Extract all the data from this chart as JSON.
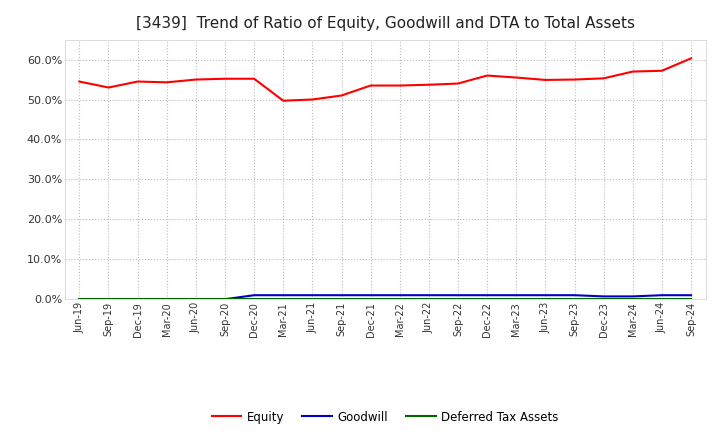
{
  "title": "[3439]  Trend of Ratio of Equity, Goodwill and DTA to Total Assets",
  "x_labels": [
    "Jun-19",
    "Sep-19",
    "Dec-19",
    "Mar-20",
    "Jun-20",
    "Sep-20",
    "Dec-20",
    "Mar-21",
    "Jun-21",
    "Sep-21",
    "Dec-21",
    "Mar-22",
    "Jun-22",
    "Sep-22",
    "Dec-22",
    "Mar-23",
    "Jun-23",
    "Sep-23",
    "Dec-23",
    "Mar-24",
    "Jun-24",
    "Sep-24"
  ],
  "equity": [
    0.545,
    0.53,
    0.545,
    0.543,
    0.55,
    0.552,
    0.552,
    0.497,
    0.5,
    0.51,
    0.535,
    0.535,
    0.537,
    0.54,
    0.56,
    0.555,
    0.549,
    0.55,
    0.553,
    0.57,
    0.572,
    0.603
  ],
  "goodwill": [
    0.0,
    0.0,
    0.0,
    0.0,
    0.0,
    0.0,
    0.01,
    0.01,
    0.01,
    0.01,
    0.01,
    0.01,
    0.01,
    0.01,
    0.01,
    0.01,
    0.01,
    0.01,
    0.007,
    0.007,
    0.01,
    0.01
  ],
  "dta": [
    0.0,
    0.0,
    0.0,
    0.0,
    0.0,
    0.0,
    0.0,
    0.0,
    0.0,
    0.0,
    0.0,
    0.0,
    0.0,
    0.0,
    0.0,
    0.0,
    0.0,
    0.0,
    0.0,
    0.0,
    0.0,
    0.0
  ],
  "equity_color": "#ff0000",
  "goodwill_color": "#0000cc",
  "dta_color": "#006600",
  "ylim": [
    0.0,
    0.65
  ],
  "yticks": [
    0.0,
    0.1,
    0.2,
    0.3,
    0.4,
    0.5,
    0.6
  ],
  "background_color": "#ffffff",
  "plot_bg_color": "#ffffff",
  "grid_color": "#bbbbbb",
  "title_fontsize": 11,
  "legend_labels": [
    "Equity",
    "Goodwill",
    "Deferred Tax Assets"
  ]
}
